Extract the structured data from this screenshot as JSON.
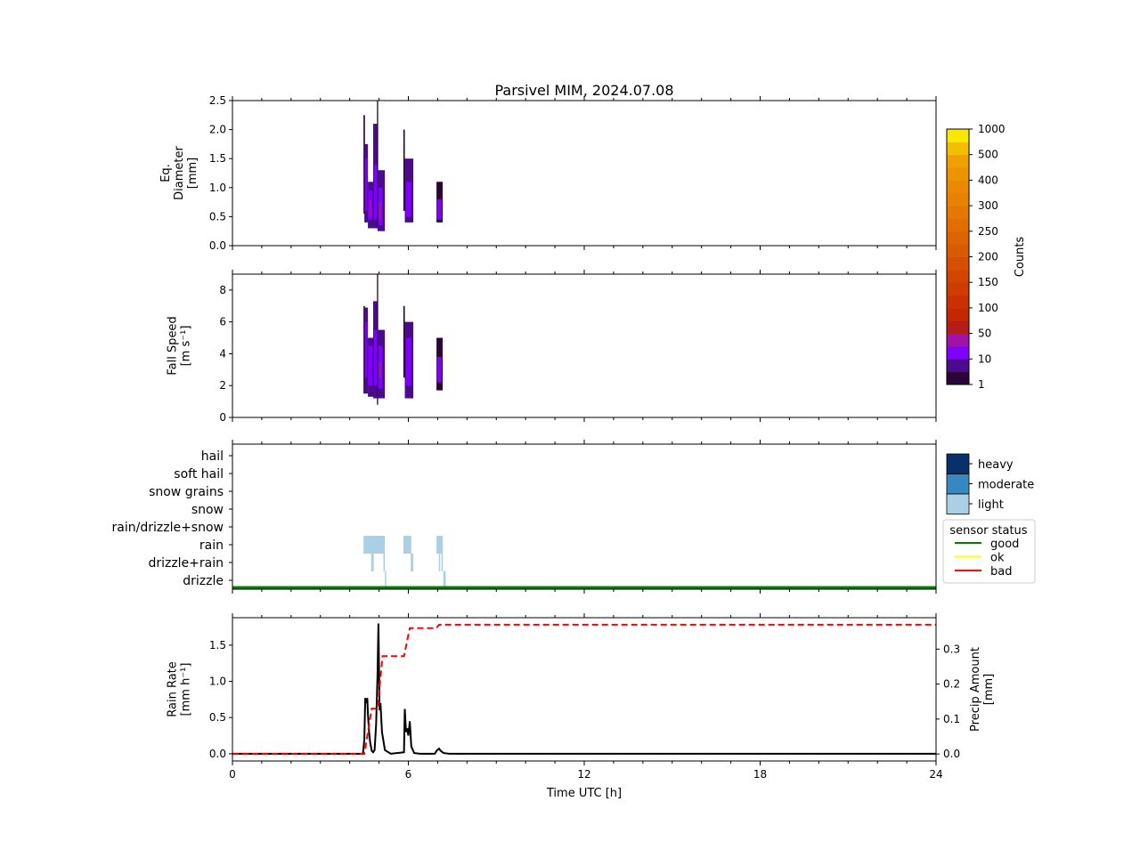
{
  "chart_data": [
    {
      "type": "heatmap",
      "title": "Parsivel MIM, 2024.07.08",
      "ylabel": "Eq.\nDiameter\n[mm]",
      "ylabel_lines": [
        "Eq.",
        "Diameter",
        "[mm]"
      ],
      "xlim": [
        0,
        24
      ],
      "ylim": [
        0,
        2.5
      ],
      "yticks": [
        "0.0",
        "0.5",
        "1.0",
        "1.5",
        "2.0",
        "2.5"
      ],
      "ytick_values": [
        0,
        0.5,
        1.0,
        1.5,
        2.0,
        2.5
      ],
      "cells": [
        [
          4.47,
          4.52,
          0.55,
          2.25,
          0
        ],
        [
          4.5,
          4.62,
          0.4,
          1.75,
          1
        ],
        [
          4.53,
          4.6,
          0.6,
          1.5,
          2
        ],
        [
          4.62,
          4.8,
          0.3,
          1.1,
          1
        ],
        [
          4.64,
          4.78,
          0.45,
          0.95,
          2
        ],
        [
          4.68,
          4.74,
          0.5,
          0.8,
          3
        ],
        [
          4.8,
          4.95,
          0.3,
          2.1,
          1
        ],
        [
          4.83,
          4.93,
          0.45,
          1.4,
          2
        ],
        [
          4.93,
          4.97,
          0.3,
          2.5,
          0
        ],
        [
          4.95,
          5.2,
          0.25,
          1.3,
          1
        ],
        [
          4.98,
          5.12,
          0.35,
          1.0,
          2
        ],
        [
          5.0,
          5.08,
          0.45,
          0.75,
          3
        ],
        [
          5.83,
          5.88,
          0.6,
          2.0,
          0
        ],
        [
          5.88,
          6.17,
          0.4,
          1.5,
          1
        ],
        [
          5.92,
          6.1,
          0.5,
          1.1,
          2
        ],
        [
          6.96,
          7.17,
          0.4,
          1.1,
          0
        ],
        [
          6.98,
          7.14,
          0.45,
          0.8,
          2
        ]
      ]
    },
    {
      "type": "heatmap",
      "ylabel_lines": [
        "Fall Speed",
        "[m s⁻¹]"
      ],
      "xlim": [
        0,
        24
      ],
      "ylim": [
        0,
        9
      ],
      "yticks": [
        "0",
        "2",
        "4",
        "6",
        "8"
      ],
      "ytick_values": [
        0,
        2,
        4,
        6,
        8
      ],
      "cells": [
        [
          4.47,
          4.52,
          1.5,
          7.0,
          0
        ],
        [
          4.5,
          4.62,
          1.5,
          6.9,
          1
        ],
        [
          4.53,
          4.6,
          2.5,
          6.0,
          2
        ],
        [
          4.62,
          4.8,
          1.3,
          5.0,
          1
        ],
        [
          4.64,
          4.78,
          2.0,
          4.5,
          2
        ],
        [
          4.8,
          4.95,
          1.2,
          7.3,
          1
        ],
        [
          4.83,
          4.93,
          2.0,
          5.5,
          2
        ],
        [
          4.93,
          4.97,
          0.8,
          9.0,
          0
        ],
        [
          4.95,
          5.2,
          1.2,
          5.5,
          1
        ],
        [
          4.98,
          5.12,
          1.8,
          4.5,
          2
        ],
        [
          5.0,
          5.08,
          2.5,
          3.5,
          3
        ],
        [
          5.83,
          5.88,
          2.5,
          7.0,
          0
        ],
        [
          5.88,
          6.17,
          1.2,
          6.0,
          1
        ],
        [
          5.92,
          6.1,
          2.0,
          5.0,
          2
        ],
        [
          6.96,
          7.17,
          1.7,
          5.0,
          0
        ],
        [
          6.98,
          7.14,
          2.2,
          3.8,
          2
        ]
      ]
    },
    {
      "type": "bar",
      "categories": [
        "drizzle",
        "drizzle+rain",
        "rain",
        "rain/drizzle+snow",
        "snow",
        "snow grains",
        "soft hail",
        "hail"
      ],
      "xlim": [
        0,
        24
      ],
      "intensity_legend": {
        "labels": [
          "heavy",
          "moderate",
          "light"
        ],
        "colors": [
          "#08306b",
          "#3787c0",
          "#abd0e6"
        ]
      },
      "status_legend": {
        "title": "sensor status",
        "labels": [
          "good",
          "ok",
          "bad"
        ],
        "colors": [
          "#008000",
          "#ffff00",
          "#ff0000"
        ]
      },
      "bars": [
        {
          "category": "rain",
          "t0": 4.47,
          "t1": 5.2,
          "intensity": "light"
        },
        {
          "category": "rain",
          "t0": 5.83,
          "t1": 6.1,
          "intensity": "light"
        },
        {
          "category": "rain",
          "t0": 6.96,
          "t1": 7.17,
          "intensity": "light"
        },
        {
          "category": "drizzle+rain",
          "t0": 4.73,
          "t1": 4.82,
          "intensity": "light"
        },
        {
          "category": "drizzle+rain",
          "t0": 5.15,
          "t1": 5.2,
          "intensity": "light"
        },
        {
          "category": "drizzle+rain",
          "t0": 6.08,
          "t1": 6.17,
          "intensity": "light"
        },
        {
          "category": "drizzle+rain",
          "t0": 7.04,
          "t1": 7.08,
          "intensity": "light"
        },
        {
          "category": "drizzle+rain",
          "t0": 7.13,
          "t1": 7.17,
          "intensity": "light"
        },
        {
          "category": "drizzle",
          "t0": 5.2,
          "t1": 5.24,
          "intensity": "light"
        },
        {
          "category": "drizzle",
          "t0": 7.19,
          "t1": 7.21,
          "intensity": "light"
        },
        {
          "category": "drizzle",
          "t0": 7.23,
          "t1": 7.25,
          "intensity": "light"
        }
      ],
      "sensor_status": [
        {
          "t0": 0,
          "t1": 24,
          "status": "good"
        }
      ]
    },
    {
      "type": "line",
      "xlabel": "Time UTC [h]",
      "xlim": [
        0,
        24
      ],
      "xticks": [
        "0",
        "6",
        "12",
        "18",
        "24"
      ],
      "xtick_values": [
        0,
        6,
        12,
        18,
        24
      ],
      "ylabel_lines": [
        "Rain Rate",
        "[mm h⁻¹]"
      ],
      "ylim": [
        -0.1,
        1.88
      ],
      "yticks": [
        "0.0",
        "0.5",
        "1.0",
        "1.5"
      ],
      "ytick_values": [
        0,
        0.5,
        1.0,
        1.5
      ],
      "y2label_lines": [
        "Precip Amount",
        "[mm]"
      ],
      "y2lim": [
        -0.02,
        0.39
      ],
      "y2ticks": [
        "0.0",
        "0.1",
        "0.2",
        "0.3"
      ],
      "y2tick_values": [
        0,
        0.1,
        0.2,
        0.3
      ],
      "series": [
        {
          "axis": "left",
          "color": "#000000",
          "style": "solid",
          "x": [
            0,
            4.45,
            4.5,
            4.53,
            4.57,
            4.6,
            4.62,
            4.66,
            4.7,
            4.75,
            4.8,
            4.85,
            4.9,
            4.95,
            4.98,
            5.02,
            5.05,
            5.1,
            5.2,
            5.4,
            5.85,
            5.88,
            5.92,
            5.96,
            6.0,
            6.05,
            6.1,
            6.2,
            6.4,
            6.9,
            6.98,
            7.05,
            7.1,
            7.2,
            7.4,
            24
          ],
          "y": [
            0,
            0,
            0.2,
            0.77,
            0.7,
            0.77,
            0.55,
            0.3,
            0.15,
            0.04,
            0.02,
            0.05,
            0.4,
            1.1,
            1.8,
            0.6,
            0.7,
            0.3,
            0.05,
            0,
            0.02,
            0.62,
            0.3,
            0.35,
            0.25,
            0.45,
            0.1,
            0.01,
            0,
            0,
            0.05,
            0.07,
            0.04,
            0.01,
            0,
            0
          ]
        },
        {
          "axis": "right",
          "color": "#ff0000",
          "style": "dashed",
          "x": [
            0,
            4.5,
            4.75,
            4.95,
            5.12,
            5.85,
            6.05,
            6.95,
            7.05,
            7.3,
            24
          ],
          "y": [
            0,
            0,
            0.13,
            0.13,
            0.28,
            0.28,
            0.36,
            0.36,
            0.37,
            0.37,
            0.37
          ]
        }
      ]
    }
  ],
  "colorbar": {
    "label": "Counts",
    "ticks": [
      "1",
      "10",
      "50",
      "100",
      "150",
      "200",
      "250",
      "300",
      "400",
      "500",
      "1000"
    ],
    "colors": [
      "#2a0535",
      "#4c0a8c",
      "#8000ff",
      "#a012a8",
      "#b51c1c",
      "#c32800",
      "#c93200",
      "#ce3c00",
      "#d24600",
      "#d65000",
      "#da5a00",
      "#de6400",
      "#e26e00",
      "#e57800",
      "#e88200",
      "#eb8a00",
      "#ee9400",
      "#f0a000",
      "#f2c000",
      "#fbe800"
    ]
  }
}
